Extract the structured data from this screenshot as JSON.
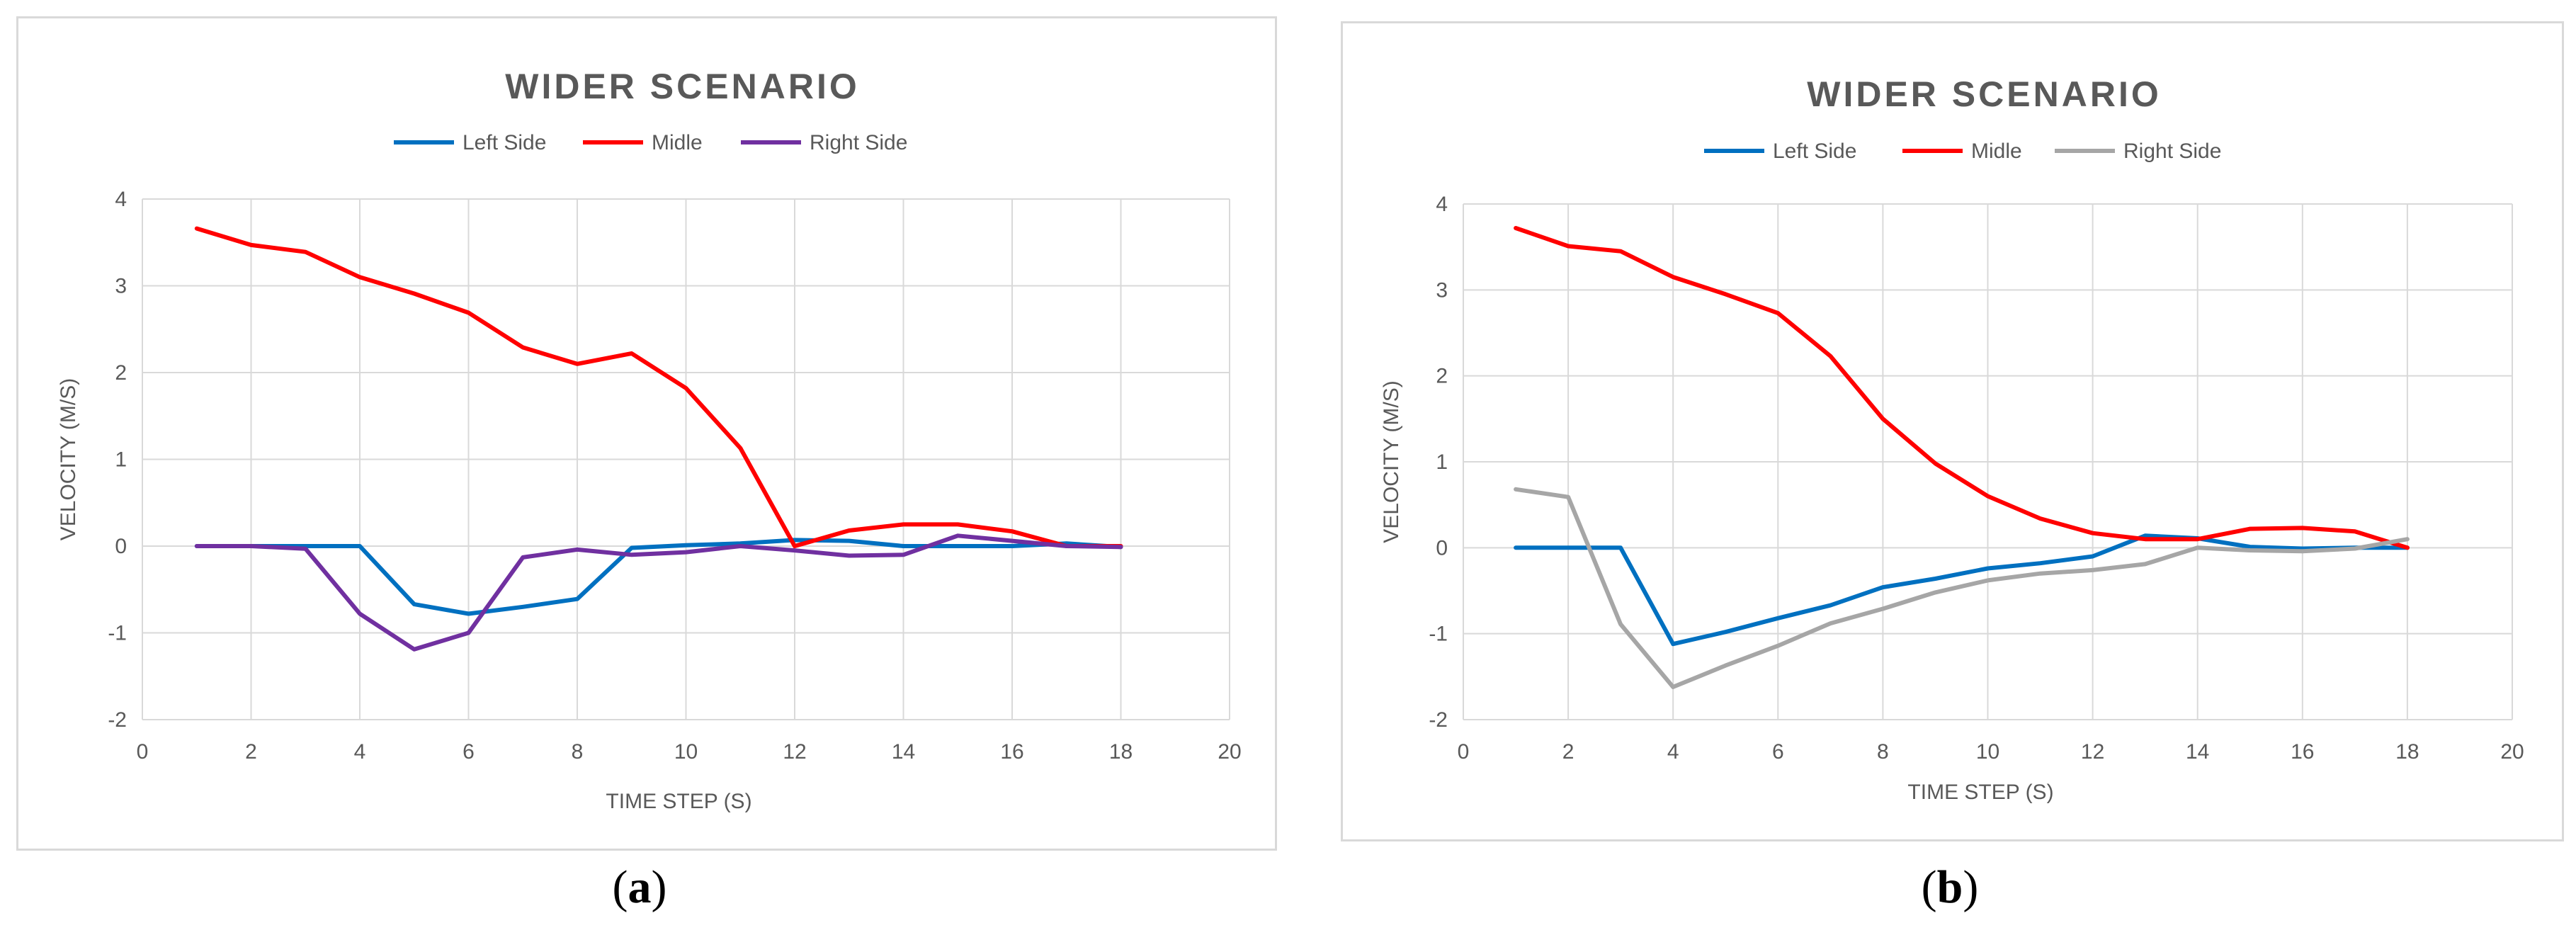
{
  "chart_data": [
    {
      "type": "line",
      "title": "WIDER SCENARIO",
      "xlabel": "TIME STEP (S)",
      "ylabel": "VELOCITY (M/S)",
      "xlim": [
        0,
        20
      ],
      "ylim": [
        -2,
        4
      ],
      "xticks": [
        0,
        2,
        4,
        6,
        8,
        10,
        12,
        14,
        16,
        18,
        20
      ],
      "yticks": [
        4,
        3,
        2,
        1,
        0,
        -1,
        -2
      ],
      "legend_position": "top",
      "grid": true,
      "x": [
        1,
        2,
        3,
        4,
        5,
        6,
        7,
        8,
        9,
        10,
        11,
        12,
        13,
        14,
        15,
        16,
        17,
        18
      ],
      "series": [
        {
          "name": "Left Side",
          "color": "#0070c0",
          "values": [
            0,
            0,
            0,
            0,
            -0.67,
            -0.78,
            -0.7,
            -0.61,
            -0.02,
            0.01,
            0.03,
            0.07,
            0.06,
            0.0,
            0.0,
            0.0,
            0.03,
            -0.01
          ]
        },
        {
          "name": "Midle",
          "color": "#ff0000",
          "values": [
            3.66,
            3.47,
            3.39,
            3.1,
            2.91,
            2.69,
            2.29,
            2.1,
            2.22,
            1.82,
            1.13,
            0.0,
            0.18,
            0.25,
            0.25,
            0.17,
            0.0,
            0.0
          ]
        },
        {
          "name": "Right Side",
          "color": "#7030a0",
          "values": [
            0,
            0,
            -0.03,
            -0.78,
            -1.19,
            -1.0,
            -0.13,
            -0.04,
            -0.1,
            -0.07,
            0.0,
            -0.05,
            -0.11,
            -0.1,
            0.12,
            0.06,
            0.0,
            -0.01
          ]
        }
      ],
      "caption": "a"
    },
    {
      "type": "line",
      "title": "WIDER SCENARIO",
      "xlabel": "TIME STEP (S)",
      "ylabel": "VELOCITY (M/S)",
      "xlim": [
        0,
        20
      ],
      "ylim": [
        -2,
        4
      ],
      "xticks": [
        0,
        2,
        4,
        6,
        8,
        10,
        12,
        14,
        16,
        18,
        20
      ],
      "yticks": [
        4,
        3,
        2,
        1,
        0,
        -1,
        -2
      ],
      "legend_position": "top",
      "grid": true,
      "x": [
        1,
        2,
        3,
        4,
        5,
        6,
        7,
        8,
        9,
        10,
        11,
        12,
        13,
        14,
        15,
        16,
        17,
        18
      ],
      "series": [
        {
          "name": "Left Side",
          "color": "#0070c0",
          "values": [
            0,
            0,
            0,
            -1.12,
            -0.98,
            -0.82,
            -0.67,
            -0.46,
            -0.36,
            -0.24,
            -0.18,
            -0.1,
            0.14,
            0.11,
            0.01,
            -0.01,
            0.0,
            0.0
          ]
        },
        {
          "name": "Midle",
          "color": "#ff0000",
          "values": [
            3.72,
            3.51,
            3.45,
            3.15,
            2.95,
            2.73,
            2.23,
            1.5,
            0.98,
            0.6,
            0.34,
            0.17,
            0.1,
            0.1,
            0.22,
            0.23,
            0.19,
            0.0
          ]
        },
        {
          "name": "Right Side",
          "color": "#a6a6a6",
          "values": [
            0.68,
            0.59,
            -0.89,
            -1.62,
            -1.37,
            -1.14,
            -0.88,
            -0.71,
            -0.52,
            -0.38,
            -0.3,
            -0.26,
            -0.19,
            0.0,
            -0.03,
            -0.04,
            -0.01,
            0.1
          ]
        }
      ],
      "caption": "b"
    }
  ]
}
